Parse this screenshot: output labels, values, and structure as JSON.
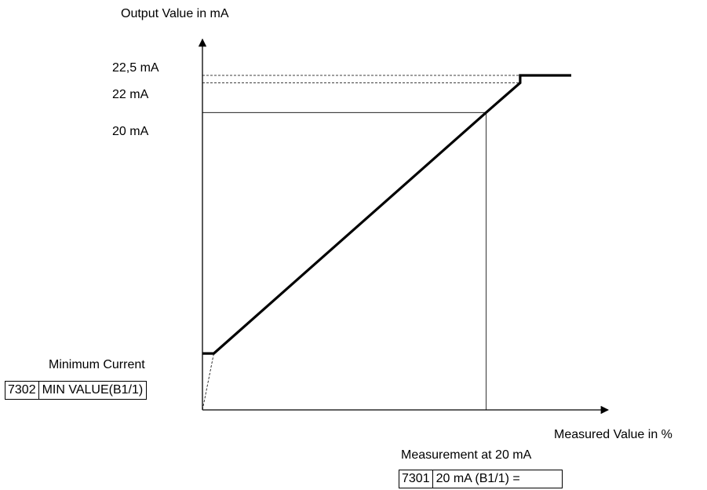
{
  "chart_data": {
    "type": "line",
    "title": "",
    "ylabel": "Output Value in mA",
    "xlabel": "Measured Value in %",
    "y_tick_labels": [
      "22,5 mA",
      "22 mA",
      "20 mA"
    ],
    "series": [
      {
        "points": [
          [
            0,
            3.8
          ],
          [
            4,
            3.8
          ],
          [
            100,
            20
          ],
          [
            112,
            22
          ],
          [
            112,
            22.5
          ],
          [
            130,
            22.5
          ]
        ]
      }
    ],
    "guides": [
      {
        "style": "solid",
        "from": [
          0,
          20
        ],
        "to": [
          100,
          20
        ]
      },
      {
        "style": "solid",
        "from": [
          100,
          0
        ],
        "to": [
          100,
          20
        ]
      },
      {
        "style": "dashed",
        "from": [
          0,
          22
        ],
        "to": [
          112,
          22
        ]
      },
      {
        "style": "dashed",
        "from": [
          0,
          22.5
        ],
        "to": [
          112,
          22.5
        ]
      },
      {
        "style": "dashed",
        "from": [
          0,
          0
        ],
        "to": [
          4,
          3.8
        ]
      }
    ],
    "xlim": [
      0,
      130
    ],
    "ylim": [
      0,
      22.5
    ]
  },
  "annotations": {
    "minimum_current_label": "Minimum Current",
    "min_param_code": "7302",
    "min_param_name": "MIN VALUE(B1/1)",
    "measurement_label": "Measurement at 20 mA",
    "meas_param_code": "7301",
    "meas_param_name": "20 mA (B1/1) ="
  }
}
